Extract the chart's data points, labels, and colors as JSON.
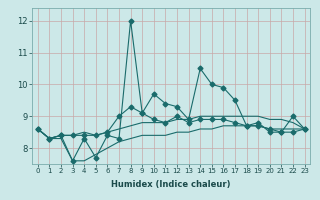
{
  "xlabel": "Humidex (Indice chaleur)",
  "bg_color": "#cce8e8",
  "line_color": "#1a6b6b",
  "grid_color": "#c8a8a8",
  "xlim_min": -0.5,
  "xlim_max": 23.5,
  "ylim_min": 7.5,
  "ylim_max": 12.4,
  "yticks": [
    8,
    9,
    10,
    11,
    12
  ],
  "xticks": [
    0,
    1,
    2,
    3,
    4,
    5,
    6,
    7,
    8,
    9,
    10,
    11,
    12,
    13,
    14,
    15,
    16,
    17,
    18,
    19,
    20,
    21,
    22,
    23
  ],
  "line1_y": [
    8.6,
    8.3,
    8.4,
    7.6,
    8.3,
    7.7,
    8.4,
    8.3,
    12.0,
    9.1,
    9.7,
    9.4,
    9.3,
    8.9,
    10.5,
    10.0,
    9.9,
    9.5,
    8.7,
    8.8,
    8.5,
    8.5,
    9.0,
    8.6
  ],
  "line2_y": [
    8.6,
    8.3,
    8.4,
    8.4,
    8.4,
    8.4,
    8.5,
    9.0,
    9.3,
    9.1,
    8.9,
    8.8,
    9.0,
    8.8,
    8.9,
    8.9,
    8.9,
    8.8,
    8.7,
    8.7,
    8.6,
    8.5,
    8.5,
    8.6
  ],
  "line3_y": [
    8.6,
    8.3,
    8.4,
    8.4,
    8.5,
    8.4,
    8.5,
    8.6,
    8.7,
    8.8,
    8.8,
    8.8,
    8.9,
    8.9,
    9.0,
    9.0,
    9.0,
    9.0,
    9.0,
    9.0,
    8.9,
    8.9,
    8.8,
    8.6
  ],
  "line4_y": [
    8.6,
    8.3,
    8.3,
    7.6,
    7.6,
    7.8,
    8.0,
    8.2,
    8.3,
    8.4,
    8.4,
    8.4,
    8.5,
    8.5,
    8.6,
    8.6,
    8.7,
    8.7,
    8.7,
    8.7,
    8.6,
    8.6,
    8.6,
    8.6
  ],
  "xlabel_fontsize": 6,
  "tick_fontsize": 5,
  "marker_size": 2.5,
  "line_width": 0.8
}
